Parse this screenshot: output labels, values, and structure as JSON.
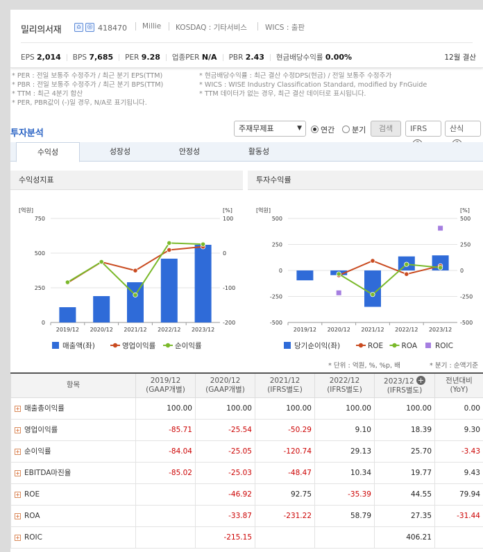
{
  "header": {
    "company_name": "밀리의서재",
    "code": "418470",
    "eng_name": "Millie",
    "market": "KOSDAQ : 기타서비스",
    "wics": "WICS : 출판",
    "close_label": "12월 결산",
    "stats": [
      {
        "label": "EPS",
        "value": "2,014"
      },
      {
        "label": "BPS",
        "value": "7,685"
      },
      {
        "label": "PER",
        "value": "9.28"
      },
      {
        "label": "업종PER",
        "value": "N/A"
      },
      {
        "label": "PBR",
        "value": "2.43"
      },
      {
        "label": "현금배당수익률",
        "value": "0.00%"
      }
    ]
  },
  "notes_left": [
    "* PER : 전일 보통주 수정주가 / 최근 분기 EPS(TTM)",
    "* PBR : 전일 보통주 수정주가 / 최근 분기 BPS(TTM)",
    "* TTM : 최근 4분기 합산",
    "* PER, PBR값이 (-)일 경우, N/A로 표기됩니다."
  ],
  "notes_right": [
    "* 현금배당수익률 : 최근 결산 수정DPS(현금) / 전일 보통주 수정주가",
    "* WICS : WISE Industry Classification Standard, modified by FnGuide",
    "* TTM 데이터가 없는 경우, 최근 결산 데이터로 표시됩니다."
  ],
  "section_title": "투자분석",
  "controls": {
    "select_value": "주재무제표",
    "radio_annual": "연간",
    "radio_quarter": "분기",
    "search": "검색",
    "ifrs": "IFRS",
    "formula": "산식"
  },
  "tabs": [
    "수익성",
    "성장성",
    "안정성",
    "활동성"
  ],
  "chart_data": [
    {
      "type": "bar",
      "title": "수익성지표",
      "categories": [
        "2019/12",
        "2020/12",
        "2021/12",
        "2022/12",
        "2023/12"
      ],
      "ylabel_left": "[억원]",
      "ylabel_right": "[%]",
      "ylim_left": [
        0,
        750
      ],
      "ylim_right": [
        -200,
        100
      ],
      "yticks_left": [
        "0",
        "250",
        "500",
        "750"
      ],
      "yticks_right": [
        "-200",
        "-100",
        "0",
        "100"
      ],
      "series": [
        {
          "name": "매출액(좌)",
          "type": "bar",
          "axis": "left",
          "color": "#2f6bd8",
          "values": [
            110,
            190,
            290,
            460,
            560
          ]
        },
        {
          "name": "영업이익률",
          "type": "line",
          "axis": "right",
          "color": "#c94a1f",
          "values": [
            -85.71,
            -25.54,
            -50.29,
            9.1,
            18.39
          ]
        },
        {
          "name": "순이익률",
          "type": "line",
          "axis": "right",
          "color": "#7ab92a",
          "values": [
            -84.04,
            -25.05,
            -120.74,
            29.13,
            25.7
          ]
        }
      ],
      "legend": "bottom"
    },
    {
      "type": "bar",
      "title": "투자수익률",
      "categories": [
        "2019/12",
        "2020/12",
        "2021/12",
        "2022/12",
        "2023/12"
      ],
      "ylabel_left": "[억원]",
      "ylabel_right": "[%]",
      "ylim_left": [
        -500,
        500
      ],
      "ylim_right": [
        -500,
        500
      ],
      "yticks_left": [
        "-500",
        "-250",
        "0",
        "250",
        "500"
      ],
      "yticks_right": [
        "-500",
        "-250",
        "0",
        "250",
        "500"
      ],
      "series": [
        {
          "name": "당기순이익(좌)",
          "type": "bar",
          "axis": "left",
          "color": "#2f6bd8",
          "values": [
            -95,
            -45,
            -350,
            135,
            145
          ]
        },
        {
          "name": "ROE",
          "type": "line",
          "axis": "right",
          "color": "#c94a1f",
          "values": [
            null,
            -46.92,
            92.75,
            -35.39,
            44.55
          ]
        },
        {
          "name": "ROA",
          "type": "line",
          "axis": "right",
          "color": "#7ab92a",
          "values": [
            null,
            -33.87,
            -231.22,
            58.79,
            27.35
          ]
        },
        {
          "name": "ROIC",
          "type": "scatter",
          "axis": "right",
          "color": "#a57ee0",
          "values": [
            null,
            -215.15,
            null,
            null,
            406.21
          ]
        }
      ],
      "legend": "bottom"
    }
  ],
  "table": {
    "unit_note": "* 단위 : 억원, %, %p, 배",
    "quarter_note": "* 분기 : 순액기준",
    "header_item": "항목",
    "columns": [
      {
        "period": "2019/12",
        "basis": "(GAAP개별)"
      },
      {
        "period": "2020/12",
        "basis": "(GAAP개별)"
      },
      {
        "period": "2021/12",
        "basis": "(IFRS별도)"
      },
      {
        "period": "2022/12",
        "basis": "(IFRS별도)"
      },
      {
        "period": "2023/12",
        "basis": "(IFRS별도)"
      },
      {
        "period": "전년대비",
        "basis": "(YoY)"
      }
    ],
    "rows": [
      {
        "label": "매출총이익률",
        "values": [
          "100.00",
          "100.00",
          "100.00",
          "100.00",
          "100.00",
          "0.00"
        ]
      },
      {
        "label": "영업이익률",
        "values": [
          "-85.71",
          "-25.54",
          "-50.29",
          "9.10",
          "18.39",
          "9.30"
        ]
      },
      {
        "label": "순이익률",
        "values": [
          "-84.04",
          "-25.05",
          "-120.74",
          "29.13",
          "25.70",
          "-3.43"
        ]
      },
      {
        "label": "EBITDA마진율",
        "values": [
          "-85.02",
          "-25.03",
          "-48.47",
          "10.34",
          "19.77",
          "9.43"
        ]
      },
      {
        "label": "ROE",
        "values": [
          "",
          "-46.92",
          "92.75",
          "-35.39",
          "44.55",
          "79.94"
        ]
      },
      {
        "label": "ROA",
        "values": [
          "",
          "-33.87",
          "-231.22",
          "58.79",
          "27.35",
          "-31.44"
        ]
      },
      {
        "label": "ROIC",
        "values": [
          "",
          "-215.15",
          "",
          "",
          "406.21",
          ""
        ]
      }
    ]
  }
}
